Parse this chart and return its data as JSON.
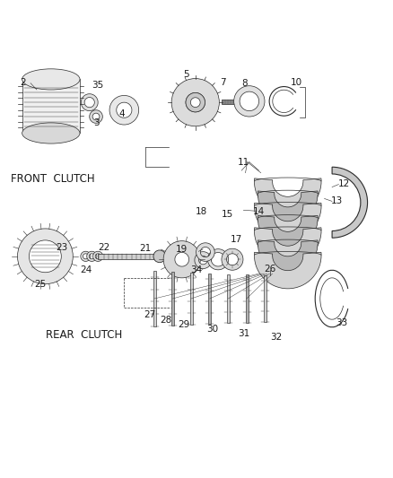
{
  "bg_color": "#ffffff",
  "line_color": "#2a2a2a",
  "text_color": "#1a1a1a",
  "label_fontsize": 7.5,
  "section_label_fontsize": 8.5,
  "front_clutch_label": "FRONT  CLUTCH",
  "rear_clutch_label": "REAR  CLUTCH"
}
